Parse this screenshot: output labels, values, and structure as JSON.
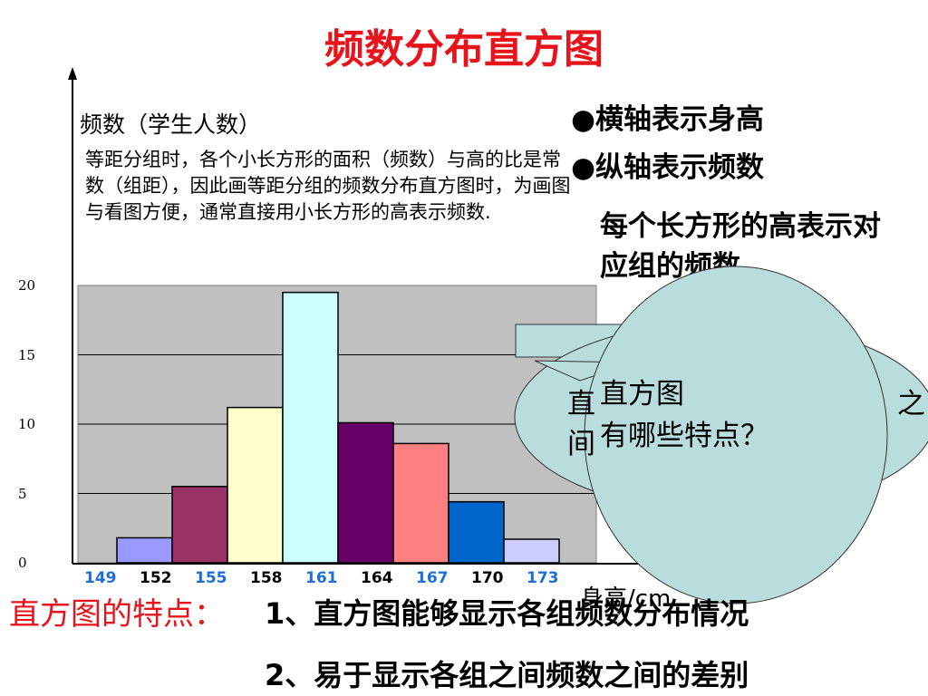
{
  "title": "频数分布直方图",
  "y_axis_label": "频数（学生人数）",
  "note": "等距分组时，各个小长方形的面积（频数）与高的比是常数（组距），因此画等距分组的频数分布直方图时，为画图与看图方便，通常直接用小长方形的高表示频数.",
  "bullets": [
    "●横轴表示身高",
    "●纵轴表示频数"
  ],
  "description": "每个长方形的高表示对应组的频数",
  "chart_data": {
    "type": "bar",
    "categories": [
      "149-152",
      "152-155",
      "155-158",
      "158-161",
      "161-164",
      "164-167",
      "167-170",
      "170-173"
    ],
    "values": [
      1.8,
      5.5,
      11.2,
      19.5,
      10.1,
      8.6,
      4.4,
      1.7
    ],
    "bar_colors": [
      "#9999ff",
      "#993366",
      "#ffffcc",
      "#ccffff",
      "#660066",
      "#ff8080",
      "#0066cc",
      "#ccccff"
    ],
    "plot_background": "#c0c0c0",
    "grid": true,
    "y_ticks": [
      "0",
      "5",
      "10",
      "15",
      "20"
    ],
    "ylim": [
      0,
      20
    ],
    "x_ticks": [
      {
        "label": "149",
        "color": "#1c6fd6"
      },
      {
        "label": "152",
        "color": "#000000"
      },
      {
        "label": "155",
        "color": "#1c6fd6"
      },
      {
        "label": "158",
        "color": "#000000"
      },
      {
        "label": "161",
        "color": "#1c6fd6"
      },
      {
        "label": "164",
        "color": "#000000"
      },
      {
        "label": "167",
        "color": "#1c6fd6"
      },
      {
        "label": "170",
        "color": "#000000"
      },
      {
        "label": "173",
        "color": "#1c6fd6"
      }
    ],
    "xlabel": "身高/cm"
  },
  "callout": {
    "line1": "直方图",
    "line2": "有哪些特点？",
    "fill": "#b9dcdd",
    "partial_left_1": "直",
    "partial_left_2": "间",
    "partial_right": "之"
  },
  "features": {
    "label": "直方图的特点：",
    "item1": "1、直方图能够显示各组频数分布情况",
    "item2": "2、易于显示各组之间频数之间的差别"
  }
}
